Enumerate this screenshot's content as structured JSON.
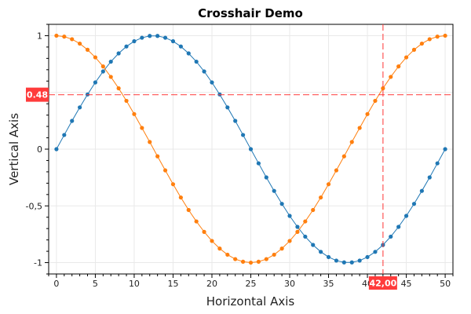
{
  "chart_data": {
    "type": "line",
    "title": "Crosshair Demo",
    "xlabel": "Horizontal Axis",
    "ylabel": "Vertical Axis",
    "xlim": [
      -1,
      51
    ],
    "ylim": [
      -1.1,
      1.1
    ],
    "xticks": [
      0,
      5,
      10,
      15,
      20,
      25,
      30,
      35,
      40,
      45,
      50
    ],
    "xtick_labels": [
      "0",
      "5",
      "10",
      "15",
      "20",
      "25",
      "30",
      "35",
      "40",
      "45",
      "50"
    ],
    "yticks": [
      1,
      0.5,
      0,
      -0.5,
      -1
    ],
    "ytick_labels": [
      "1",
      "0,5",
      "0",
      "-0,5",
      "-1"
    ],
    "grid": true,
    "x": [
      0,
      1,
      2,
      3,
      4,
      5,
      6,
      7,
      8,
      9,
      10,
      11,
      12,
      13,
      14,
      15,
      16,
      17,
      18,
      19,
      20,
      21,
      22,
      23,
      24,
      25,
      26,
      27,
      28,
      29,
      30,
      31,
      32,
      33,
      34,
      35,
      36,
      37,
      38,
      39,
      40,
      41,
      42,
      43,
      44,
      45,
      46,
      47,
      48,
      49,
      50
    ],
    "series": [
      {
        "color": "#1f77b4",
        "values": [
          0,
          0.125,
          0.249,
          0.368,
          0.482,
          0.588,
          0.685,
          0.771,
          0.844,
          0.905,
          0.951,
          0.982,
          0.998,
          0.998,
          0.982,
          0.951,
          0.905,
          0.844,
          0.771,
          0.685,
          0.588,
          0.482,
          0.368,
          0.249,
          0.125,
          0,
          -0.125,
          -0.249,
          -0.368,
          -0.482,
          -0.588,
          -0.685,
          -0.771,
          -0.844,
          -0.905,
          -0.951,
          -0.982,
          -0.998,
          -0.998,
          -0.982,
          -0.951,
          -0.905,
          -0.844,
          -0.771,
          -0.685,
          -0.588,
          -0.482,
          -0.368,
          -0.249,
          -0.125,
          0
        ]
      },
      {
        "color": "#ff7f0e",
        "values": [
          1,
          0.992,
          0.969,
          0.93,
          0.876,
          0.809,
          0.729,
          0.637,
          0.536,
          0.426,
          0.309,
          0.187,
          0.063,
          -0.063,
          -0.187,
          -0.309,
          -0.426,
          -0.536,
          -0.637,
          -0.729,
          -0.809,
          -0.876,
          -0.93,
          -0.969,
          -0.992,
          -1,
          -0.992,
          -0.969,
          -0.93,
          -0.876,
          -0.809,
          -0.729,
          -0.637,
          -0.536,
          -0.426,
          -0.309,
          -0.187,
          -0.063,
          0.063,
          0.187,
          0.309,
          0.426,
          0.536,
          0.637,
          0.729,
          0.809,
          0.876,
          0.93,
          0.969,
          0.992,
          1
        ]
      }
    ],
    "crosshair": {
      "x": 42,
      "y": 0.48,
      "x_label": "42,00",
      "y_label": "0.48",
      "color": "#ff3b3b"
    }
  }
}
